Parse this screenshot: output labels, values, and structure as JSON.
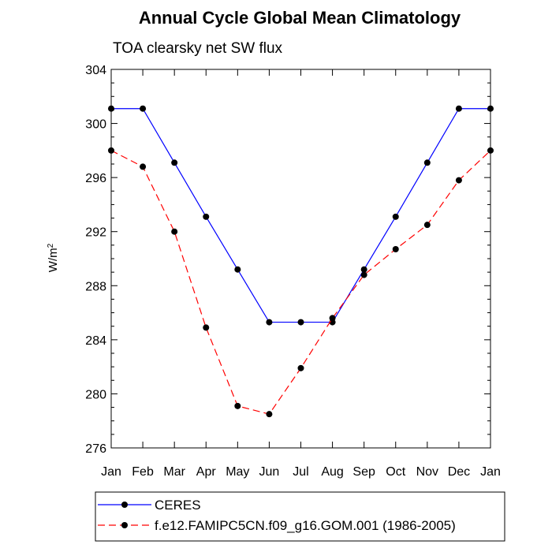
{
  "chart_data": {
    "type": "line",
    "title": "Annual Cycle Global Mean Climatology",
    "subtitle": "TOA clearsky net SW flux",
    "xlabel": "",
    "ylabel_base": "W/m",
    "ylabel_sup": "2",
    "categories": [
      "Jan",
      "Feb",
      "Mar",
      "Apr",
      "May",
      "Jun",
      "Jul",
      "Aug",
      "Sep",
      "Oct",
      "Nov",
      "Dec",
      "Jan"
    ],
    "ylim": [
      276,
      304
    ],
    "yticks": [
      276,
      280,
      284,
      288,
      292,
      296,
      300,
      304
    ],
    "grid": false,
    "legend_position": "bottom",
    "series": [
      {
        "name": "CERES",
        "color": "#0000ff",
        "line_style": "solid",
        "marker": "filled-circle",
        "values": [
          301.1,
          301.1,
          297.1,
          293.1,
          289.2,
          285.3,
          285.3,
          285.3,
          289.2,
          293.1,
          297.1,
          301.1,
          301.1
        ]
      },
      {
        "name": "f.e12.FAMIPC5CN.f09_g16.GOM.001 (1986-2005)",
        "color": "#ff0000",
        "line_style": "dashed",
        "marker": "filled-circle",
        "values": [
          298.0,
          296.8,
          292.0,
          284.9,
          279.1,
          278.5,
          281.9,
          285.6,
          288.8,
          290.7,
          292.5,
          295.8,
          298.0
        ]
      }
    ]
  }
}
